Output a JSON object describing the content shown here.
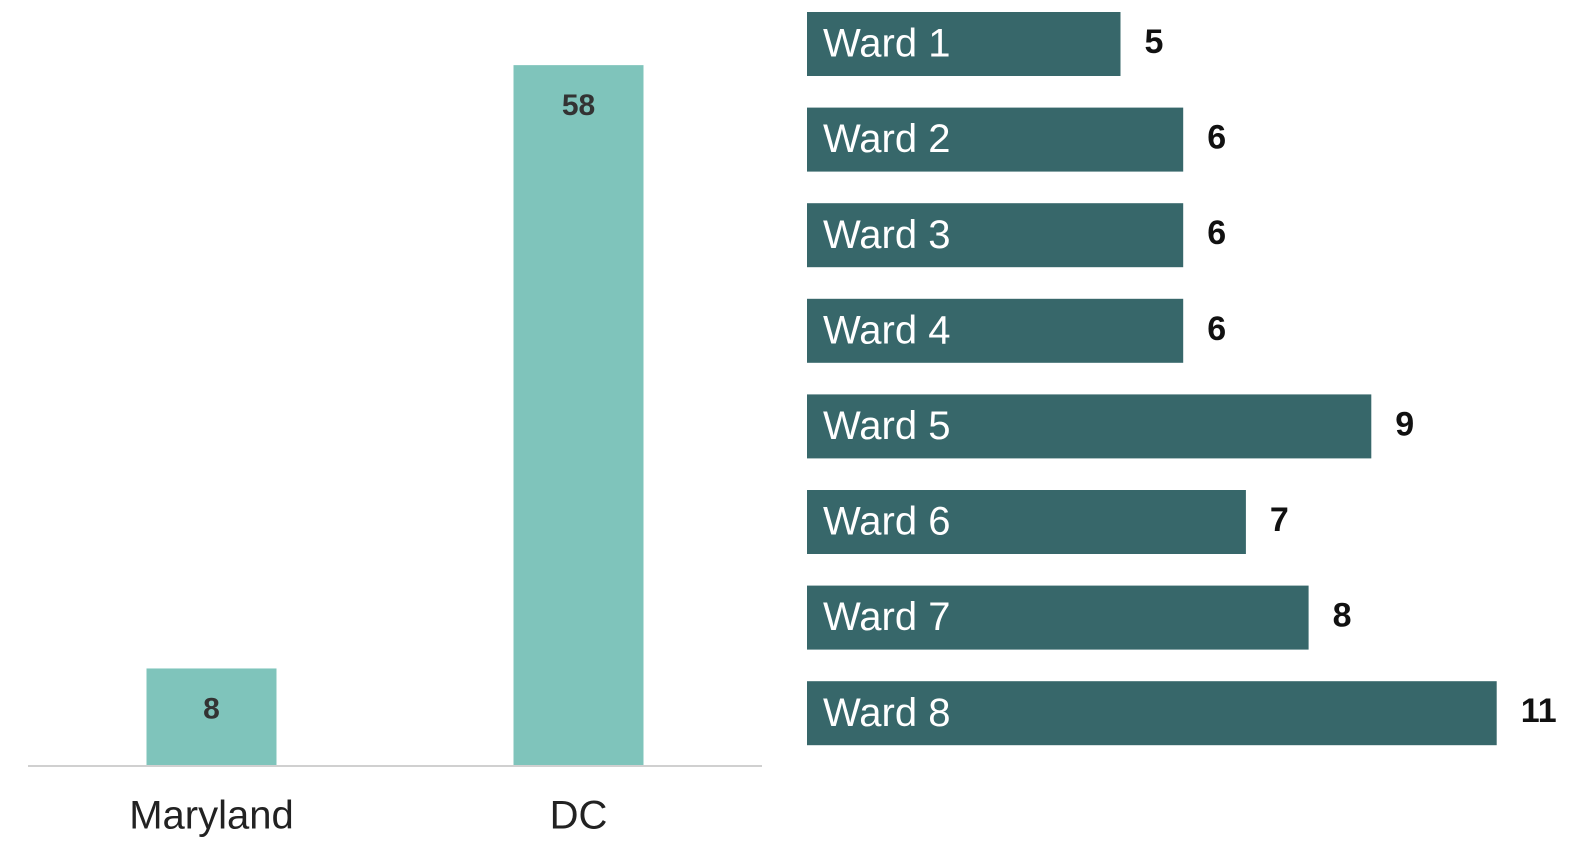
{
  "chart_data": [
    {
      "type": "bar",
      "categories": [
        "Maryland",
        "DC"
      ],
      "values": [
        8,
        58
      ],
      "color": "#7fc4bb",
      "ylim": [
        0,
        60
      ]
    },
    {
      "type": "barh",
      "categories": [
        "Ward 1",
        "Ward 2",
        "Ward 3",
        "Ward 4",
        "Ward 5",
        "Ward 6",
        "Ward 7",
        "Ward 8"
      ],
      "values": [
        5,
        6,
        6,
        6,
        9,
        7,
        8,
        11
      ],
      "color": "#37676a",
      "xlim": [
        0,
        12
      ]
    }
  ]
}
